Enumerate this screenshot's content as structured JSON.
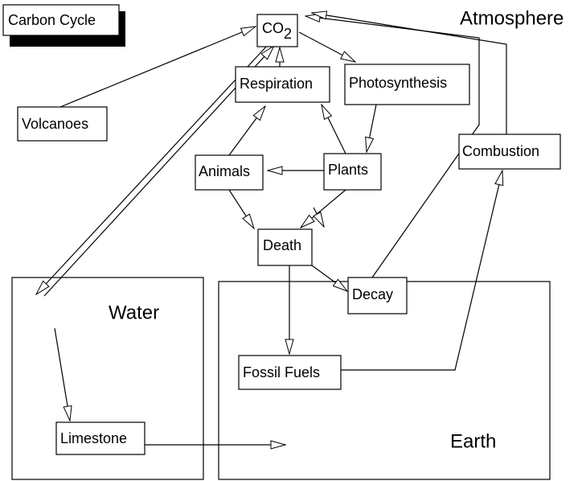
{
  "title": "Carbon Cycle",
  "regions": {
    "atmosphere": "Atmosphere",
    "water": "Water",
    "earth": "Earth"
  },
  "nodes": {
    "co2": {
      "label": "CO",
      "subscript": "2"
    },
    "respiration": {
      "label": "Respiration"
    },
    "photosynthesis": {
      "label": "Photosynthesis"
    },
    "volcanoes": {
      "label": "Volcanoes"
    },
    "combustion": {
      "label": "Combustion"
    },
    "animals": {
      "label": "Animals"
    },
    "plants": {
      "label": "Plants"
    },
    "death": {
      "label": "Death"
    },
    "decay": {
      "label": "Decay"
    },
    "fossil_fuels": {
      "label": "Fossil Fuels"
    },
    "limestone": {
      "label": "Limestone"
    }
  }
}
